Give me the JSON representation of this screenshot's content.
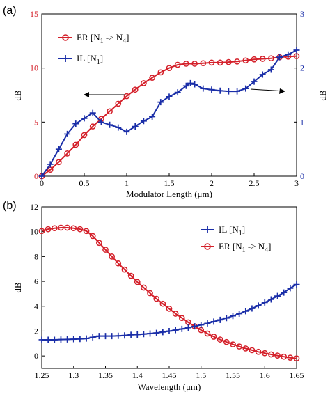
{
  "colors": {
    "er": "#d4202a",
    "il": "#1a2ea8",
    "axis": "#000000"
  },
  "chart_data": [
    {
      "panel_label": "(a)",
      "type": "line",
      "xlabel": "Modulator Length (μm)",
      "ylabel_left": "dB",
      "ylabel_right": "dB",
      "xlim": [
        0,
        3
      ],
      "ylim_left": [
        0,
        15
      ],
      "ylim_right": [
        0,
        3
      ],
      "x_ticks": [
        "0",
        "0.5",
        "1",
        "1.5",
        "2",
        "2.5",
        "3"
      ],
      "y_ticks_left": [
        "0",
        "5",
        "10",
        "15"
      ],
      "y_ticks_right": [
        "0",
        "1",
        "2",
        "3"
      ],
      "legend_position": "top-left",
      "series": [
        {
          "name": "ER [N1 -> N4]",
          "marker": "circle",
          "axis": "left",
          "x": [
            0,
            0.1,
            0.2,
            0.3,
            0.4,
            0.5,
            0.6,
            0.7,
            0.8,
            0.9,
            1.0,
            1.1,
            1.2,
            1.3,
            1.4,
            1.5,
            1.6,
            1.7,
            1.8,
            1.9,
            2.0,
            2.1,
            2.2,
            2.3,
            2.4,
            2.5,
            2.6,
            2.7,
            2.8,
            2.9,
            3.0
          ],
          "y": [
            0,
            0.6,
            1.3,
            2.1,
            2.9,
            3.8,
            4.6,
            5.3,
            6.0,
            6.7,
            7.4,
            8.0,
            8.6,
            9.1,
            9.6,
            10.0,
            10.3,
            10.4,
            10.4,
            10.45,
            10.5,
            10.5,
            10.55,
            10.6,
            10.7,
            10.8,
            10.85,
            10.9,
            11.0,
            11.05,
            11.1
          ]
        },
        {
          "name": "IL [N1]",
          "marker": "plus",
          "axis": "right",
          "x": [
            0,
            0.1,
            0.2,
            0.3,
            0.4,
            0.5,
            0.6,
            0.7,
            0.8,
            0.9,
            1.0,
            1.1,
            1.2,
            1.3,
            1.4,
            1.5,
            1.6,
            1.7,
            1.75,
            1.8,
            1.9,
            2.0,
            2.1,
            2.2,
            2.3,
            2.4,
            2.5,
            2.6,
            2.7,
            2.8,
            2.9,
            3.0
          ],
          "y": [
            0,
            0.22,
            0.5,
            0.78,
            0.97,
            1.07,
            1.17,
            1.0,
            0.95,
            0.9,
            0.82,
            0.92,
            1.02,
            1.1,
            1.37,
            1.47,
            1.55,
            1.67,
            1.72,
            1.7,
            1.62,
            1.6,
            1.58,
            1.57,
            1.57,
            1.62,
            1.75,
            1.88,
            1.97,
            2.2,
            2.25,
            2.33
          ]
        }
      ],
      "annotations": [
        "arrow pointing left to ER curve",
        "arrow pointing right to IL axis"
      ]
    },
    {
      "panel_label": "(b)",
      "type": "line",
      "xlabel": "Wavelength (μm)",
      "ylabel": "dB",
      "xlim": [
        1.25,
        1.65
      ],
      "ylim": [
        -1,
        12
      ],
      "x_ticks": [
        "1.25",
        "1.3",
        "1.35",
        "1.4",
        "1.45",
        "1.5",
        "1.55",
        "1.6",
        "1.65"
      ],
      "y_ticks": [
        "0",
        "2",
        "4",
        "6",
        "8",
        "10",
        "12"
      ],
      "legend_position": "top-right",
      "series": [
        {
          "name": "IL [N1]",
          "marker": "plus",
          "x": [
            1.25,
            1.26,
            1.27,
            1.28,
            1.29,
            1.3,
            1.31,
            1.32,
            1.33,
            1.34,
            1.35,
            1.36,
            1.37,
            1.38,
            1.39,
            1.4,
            1.41,
            1.42,
            1.43,
            1.44,
            1.45,
            1.46,
            1.47,
            1.48,
            1.49,
            1.5,
            1.51,
            1.52,
            1.53,
            1.54,
            1.55,
            1.56,
            1.57,
            1.58,
            1.59,
            1.6,
            1.61,
            1.62,
            1.63,
            1.64,
            1.65
          ],
          "y": [
            1.3,
            1.3,
            1.3,
            1.32,
            1.33,
            1.35,
            1.37,
            1.4,
            1.5,
            1.6,
            1.6,
            1.6,
            1.62,
            1.65,
            1.7,
            1.72,
            1.76,
            1.8,
            1.85,
            1.92,
            2.0,
            2.08,
            2.17,
            2.27,
            2.38,
            2.5,
            2.62,
            2.76,
            2.9,
            3.05,
            3.22,
            3.4,
            3.6,
            3.82,
            4.05,
            4.3,
            4.55,
            4.82,
            5.1,
            5.45,
            5.75
          ]
        },
        {
          "name": "ER [N1 -> N4]",
          "marker": "circle",
          "x": [
            1.25,
            1.26,
            1.27,
            1.28,
            1.29,
            1.3,
            1.31,
            1.32,
            1.33,
            1.34,
            1.35,
            1.36,
            1.37,
            1.38,
            1.39,
            1.4,
            1.41,
            1.42,
            1.43,
            1.44,
            1.45,
            1.46,
            1.47,
            1.48,
            1.49,
            1.5,
            1.51,
            1.52,
            1.53,
            1.54,
            1.55,
            1.56,
            1.57,
            1.58,
            1.59,
            1.6,
            1.61,
            1.62,
            1.63,
            1.64,
            1.65
          ],
          "y": [
            10.05,
            10.2,
            10.28,
            10.32,
            10.32,
            10.28,
            10.2,
            10.05,
            9.65,
            9.1,
            8.55,
            8.0,
            7.45,
            6.95,
            6.45,
            5.95,
            5.5,
            5.05,
            4.6,
            4.2,
            3.8,
            3.4,
            3.05,
            2.7,
            2.38,
            2.08,
            1.8,
            1.55,
            1.32,
            1.12,
            0.93,
            0.76,
            0.6,
            0.46,
            0.33,
            0.22,
            0.12,
            0.03,
            -0.06,
            -0.14,
            -0.2
          ]
        }
      ]
    }
  ],
  "legend_labels": {
    "a_er": {
      "main": "ER [N",
      "sub1": "1",
      "mid": " -> N",
      "sub2": "4",
      "end": "]"
    },
    "a_il": {
      "main": "IL [N",
      "sub1": "1",
      "end": "]"
    },
    "b_il": {
      "main": "IL [N",
      "sub1": "1",
      "end": "]"
    },
    "b_er": {
      "main": "ER [N",
      "sub1": "1",
      "mid": " -> N",
      "sub2": "4",
      "end": "]"
    }
  }
}
